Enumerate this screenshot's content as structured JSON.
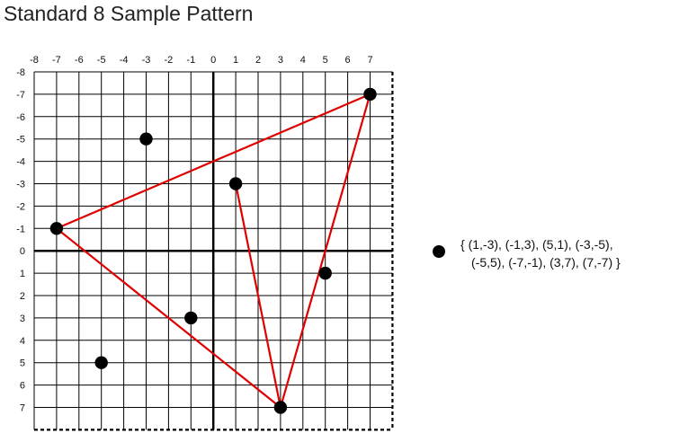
{
  "title": "Standard 8 Sample Pattern",
  "legend": {
    "line1": "{ (1,-3), (-1,3), (5,1), (-3,-5),",
    "line2": "(-5,5), (-7,-1), (3,7), (7,-7) }"
  },
  "x_ticks": [
    "-8",
    "-7",
    "-6",
    "-5",
    "-4",
    "-3",
    "-2",
    "-1",
    "0",
    "1",
    "2",
    "3",
    "4",
    "5",
    "6",
    "7"
  ],
  "y_ticks": [
    "-8",
    "-7",
    "-6",
    "-5",
    "-4",
    "-3",
    "-2",
    "-1",
    "0",
    "1",
    "2",
    "3",
    "4",
    "5",
    "6",
    "7"
  ],
  "points": [
    [
      1,
      -3
    ],
    [
      -1,
      3
    ],
    [
      5,
      1
    ],
    [
      -3,
      -5
    ],
    [
      -5,
      5
    ],
    [
      -7,
      -1
    ],
    [
      3,
      7
    ],
    [
      7,
      -7
    ]
  ],
  "triangles": [
    [
      [
        -7,
        -1
      ],
      [
        7,
        -7
      ],
      [
        3,
        7
      ]
    ],
    [
      [
        1,
        -3
      ],
      [
        3,
        7
      ]
    ]
  ],
  "colors": {
    "line": "#e00000",
    "point": "#000000",
    "grid": "#000000"
  }
}
